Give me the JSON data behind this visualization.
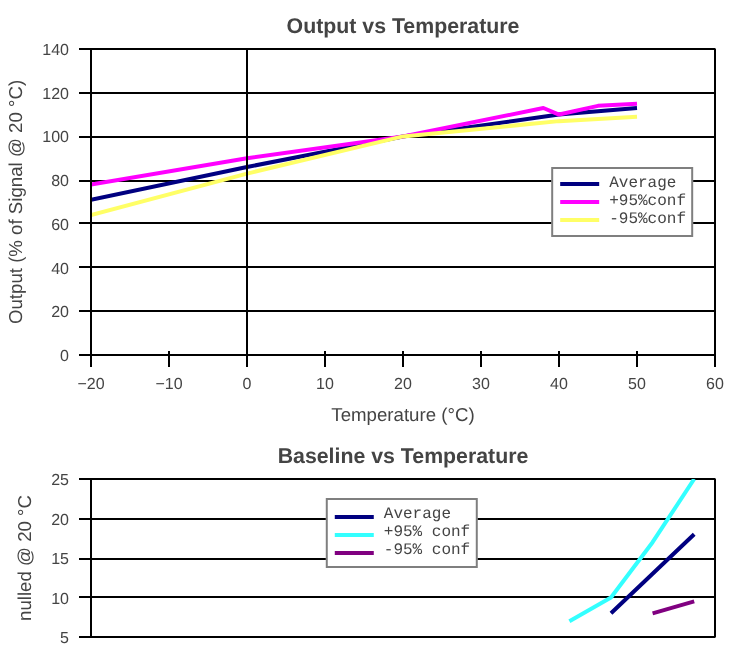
{
  "chart_data": [
    {
      "type": "line",
      "title": "Output vs Temperature",
      "xlabel": "Temperature (°C)",
      "ylabel": "Output (% of Signal @ 20 °C)",
      "xlim": [
        -20,
        60
      ],
      "xticks": [
        -20,
        -10,
        0,
        10,
        20,
        30,
        40,
        50,
        60
      ],
      "ylim": [
        0,
        140
      ],
      "yticks": [
        0,
        20,
        40,
        60,
        80,
        100,
        120,
        140
      ],
      "grid": "y",
      "legend": "right",
      "ref_lines": [
        {
          "axis": "x",
          "value": 0,
          "color": "#000000"
        }
      ],
      "series": [
        {
          "name": "Average",
          "color": "#000080",
          "x": [
            -20,
            0,
            20,
            40,
            50
          ],
          "values": [
            71,
            86,
            100,
            110,
            113
          ]
        },
        {
          "name": "+95%conf",
          "color": "#ff00ff",
          "x": [
            -20,
            0,
            20,
            38,
            40,
            45,
            50
          ],
          "values": [
            78,
            90,
            100,
            113,
            110,
            114,
            115
          ]
        },
        {
          "name": "-95%conf",
          "color": "#ffff66",
          "x": [
            -20,
            0,
            20,
            40,
            50
          ],
          "values": [
            64,
            83,
            100,
            107,
            109
          ]
        }
      ]
    },
    {
      "type": "line",
      "title": "Baseline vs Temperature",
      "ylabel": "nulled @ 20 °C",
      "categories": [
        null,
        null,
        null,
        null,
        null,
        null,
        null,
        null,
        null,
        null,
        null,
        null,
        null,
        null,
        null
      ],
      "ylim": [
        5,
        25
      ],
      "yticks": [
        5,
        10,
        15,
        20,
        25
      ],
      "grid": "y",
      "legend": "top",
      "tick_labels": "y",
      "series": [
        {
          "name": "Average",
          "color": "#000080",
          "values": [
            null,
            null,
            null,
            null,
            null,
            null,
            null,
            null,
            null,
            null,
            null,
            null,
            8,
            13,
            18
          ]
        },
        {
          "name": "+95% conf",
          "color": "#33ffff",
          "values": [
            null,
            null,
            null,
            null,
            null,
            null,
            null,
            null,
            null,
            null,
            null,
            7,
            10,
            17,
            25
          ]
        },
        {
          "name": "-95% conf",
          "color": "#800080",
          "values": [
            null,
            null,
            null,
            null,
            null,
            null,
            null,
            null,
            null,
            null,
            null,
            null,
            null,
            8,
            9.5
          ]
        }
      ]
    }
  ]
}
